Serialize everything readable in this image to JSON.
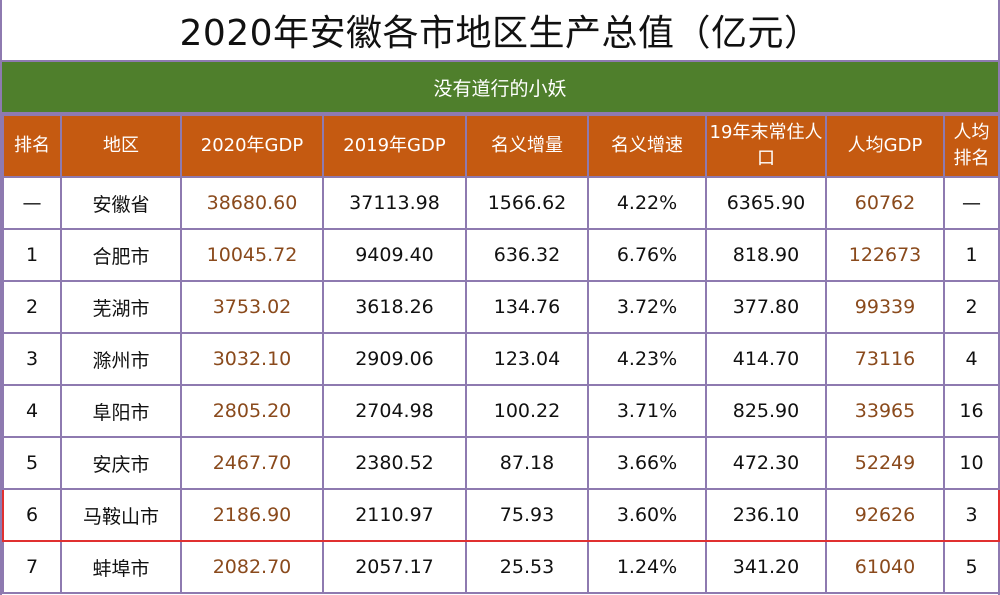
{
  "title": "2020年安徽各市地区生产总值（亿元）",
  "subtitle": "没有道行的小妖",
  "headers": [
    "排名",
    "地区",
    "2020年GDP",
    "2019年GDP",
    "名义增量",
    "名义增速",
    "19年末常住人口",
    "人均GDP",
    "人均排名"
  ],
  "rows": [
    [
      "—",
      "安徽省",
      "38680.60",
      "37113.98",
      "1566.62",
      "4.22%",
      "6365.90",
      "60762",
      "—"
    ],
    [
      "1",
      "合肥市",
      "10045.72",
      "9409.40",
      "636.32",
      "6.76%",
      "818.90",
      "122673",
      "1"
    ],
    [
      "2",
      "芜湖市",
      "3753.02",
      "3618.26",
      "134.76",
      "3.72%",
      "377.80",
      "99339",
      "2"
    ],
    [
      "3",
      "滁州市",
      "3032.10",
      "2909.06",
      "123.04",
      "4.23%",
      "414.70",
      "73116",
      "4"
    ],
    [
      "4",
      "阜阳市",
      "2805.20",
      "2704.98",
      "100.22",
      "3.71%",
      "825.90",
      "33965",
      "16"
    ],
    [
      "5",
      "安庆市",
      "2467.70",
      "2380.52",
      "87.18",
      "3.66%",
      "472.30",
      "52249",
      "10"
    ],
    [
      "6",
      "马鞍山市",
      "2186.90",
      "2110.97",
      "75.93",
      "3.60%",
      "236.10",
      "92626",
      "3"
    ],
    [
      "7",
      "蚌埠市",
      "2082.70",
      "2057.17",
      "25.53",
      "1.24%",
      "341.20",
      "61040",
      "5"
    ]
  ],
  "highlight_row": 6,
  "colors": {
    "header_bg": "#c55a11",
    "subtitle_bg": "#4f7f2c",
    "border": "#8e7ab0",
    "highlight_border": "#e03030",
    "value_brown": "#8a4a1c"
  }
}
